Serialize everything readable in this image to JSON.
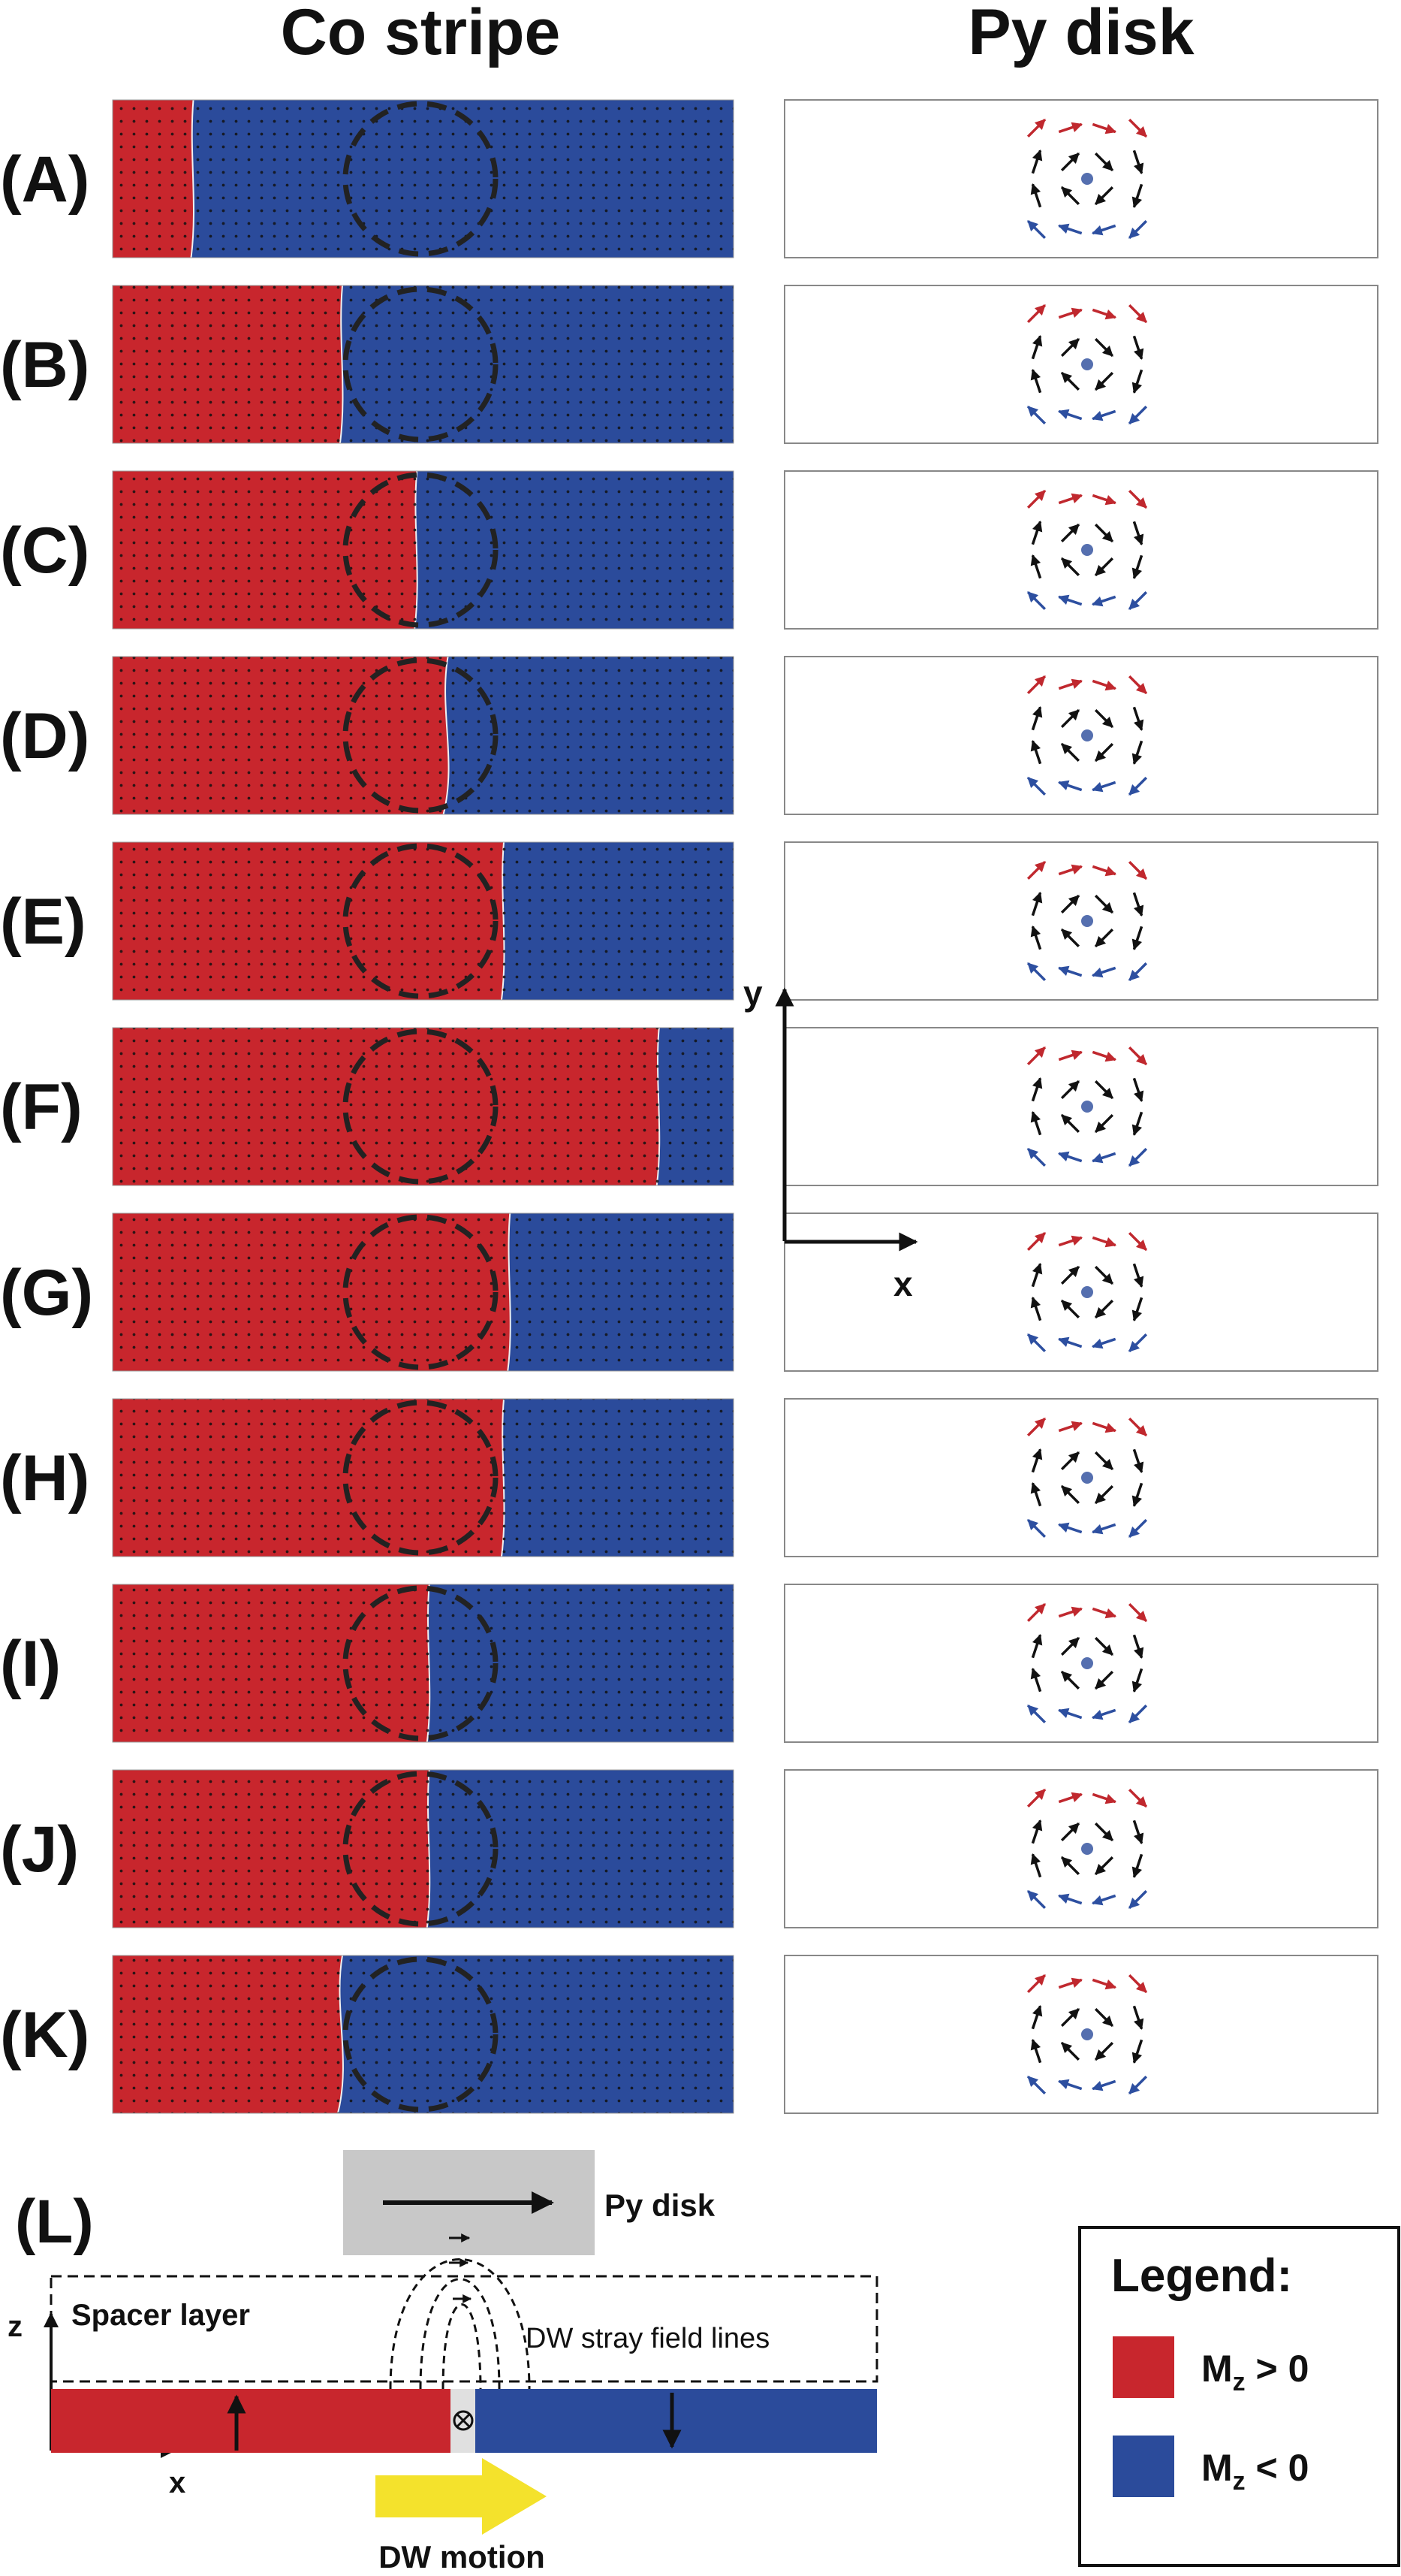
{
  "headers": {
    "co_stripe": "Co stripe",
    "py_disk": "Py disk"
  },
  "colors": {
    "mz_positive": "#c8262d",
    "mz_negative": "#2b4b9b",
    "arrow_red": "#c0282e",
    "arrow_blue": "#2d4fa0",
    "arrow_black": "#111111",
    "dw_motion": "#f4e22c",
    "py_disk_block": "#c8c8c8"
  },
  "panels": [
    {
      "label": "(A)",
      "domain_wall_fraction": 0.13
    },
    {
      "label": "(B)",
      "domain_wall_fraction": 0.37
    },
    {
      "label": "(C)",
      "domain_wall_fraction": 0.49
    },
    {
      "label": "(D)",
      "domain_wall_fraction": 0.54
    },
    {
      "label": "(E)",
      "domain_wall_fraction": 0.63
    },
    {
      "label": "(F)",
      "domain_wall_fraction": 0.88
    },
    {
      "label": "(G)",
      "domain_wall_fraction": 0.64
    },
    {
      "label": "(H)",
      "domain_wall_fraction": 0.63
    },
    {
      "label": "(I)",
      "domain_wall_fraction": 0.51
    },
    {
      "label": "(J)",
      "domain_wall_fraction": 0.51
    },
    {
      "label": "(K)",
      "domain_wall_fraction": 0.37
    }
  ],
  "axes": {
    "x": "x",
    "y": "y",
    "z": "z"
  },
  "panel_L": {
    "label": "(L)",
    "py_disk": "Py disk",
    "spacer_layer": "Spacer layer",
    "stray_field": "DW stray field lines",
    "dw_motion": "DW motion"
  },
  "legend": {
    "title": "Legend:",
    "items": [
      {
        "symbol": "M",
        "subscript": "z",
        "relation": " > 0",
        "color": "#c8262d"
      },
      {
        "symbol": "M",
        "subscript": "z",
        "relation": " < 0",
        "color": "#2b4b9b"
      }
    ]
  }
}
